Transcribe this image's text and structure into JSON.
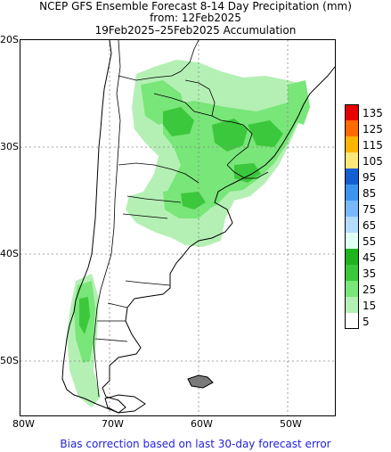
{
  "header": {
    "line1": "NCEP GFS Ensemble Forecast 8-14 Day Precipitation (mm)",
    "line2": "from: 12Feb2025",
    "line3": "19Feb2025–25Feb2025 Accumulation"
  },
  "axes": {
    "lat_labels": [
      "20S",
      "30S",
      "40S",
      "50S"
    ],
    "lon_labels": [
      "80W",
      "70W",
      "60W",
      "50W"
    ]
  },
  "legend": {
    "items": [
      {
        "label": "135",
        "color": "#e60000"
      },
      {
        "label": "125",
        "color": "#ff6a00"
      },
      {
        "label": "115",
        "color": "#ffb400"
      },
      {
        "label": "105",
        "color": "#ffe878"
      },
      {
        "label": "95",
        "color": "#1460d2"
      },
      {
        "label": "85",
        "color": "#3c96f0"
      },
      {
        "label": "75",
        "color": "#78b9fa"
      },
      {
        "label": "65",
        "color": "#b4dcff"
      },
      {
        "label": "55",
        "color": "#e1fff5"
      },
      {
        "label": "45",
        "color": "#1eb41e"
      },
      {
        "label": "35",
        "color": "#3cc83c"
      },
      {
        "label": "25",
        "color": "#78e678"
      },
      {
        "label": "15",
        "color": "#b4f0b4"
      },
      {
        "label": "5",
        "color": "#ffffff"
      }
    ]
  },
  "footer": {
    "note": "Bias correction based on last 30-day forecast error"
  }
}
